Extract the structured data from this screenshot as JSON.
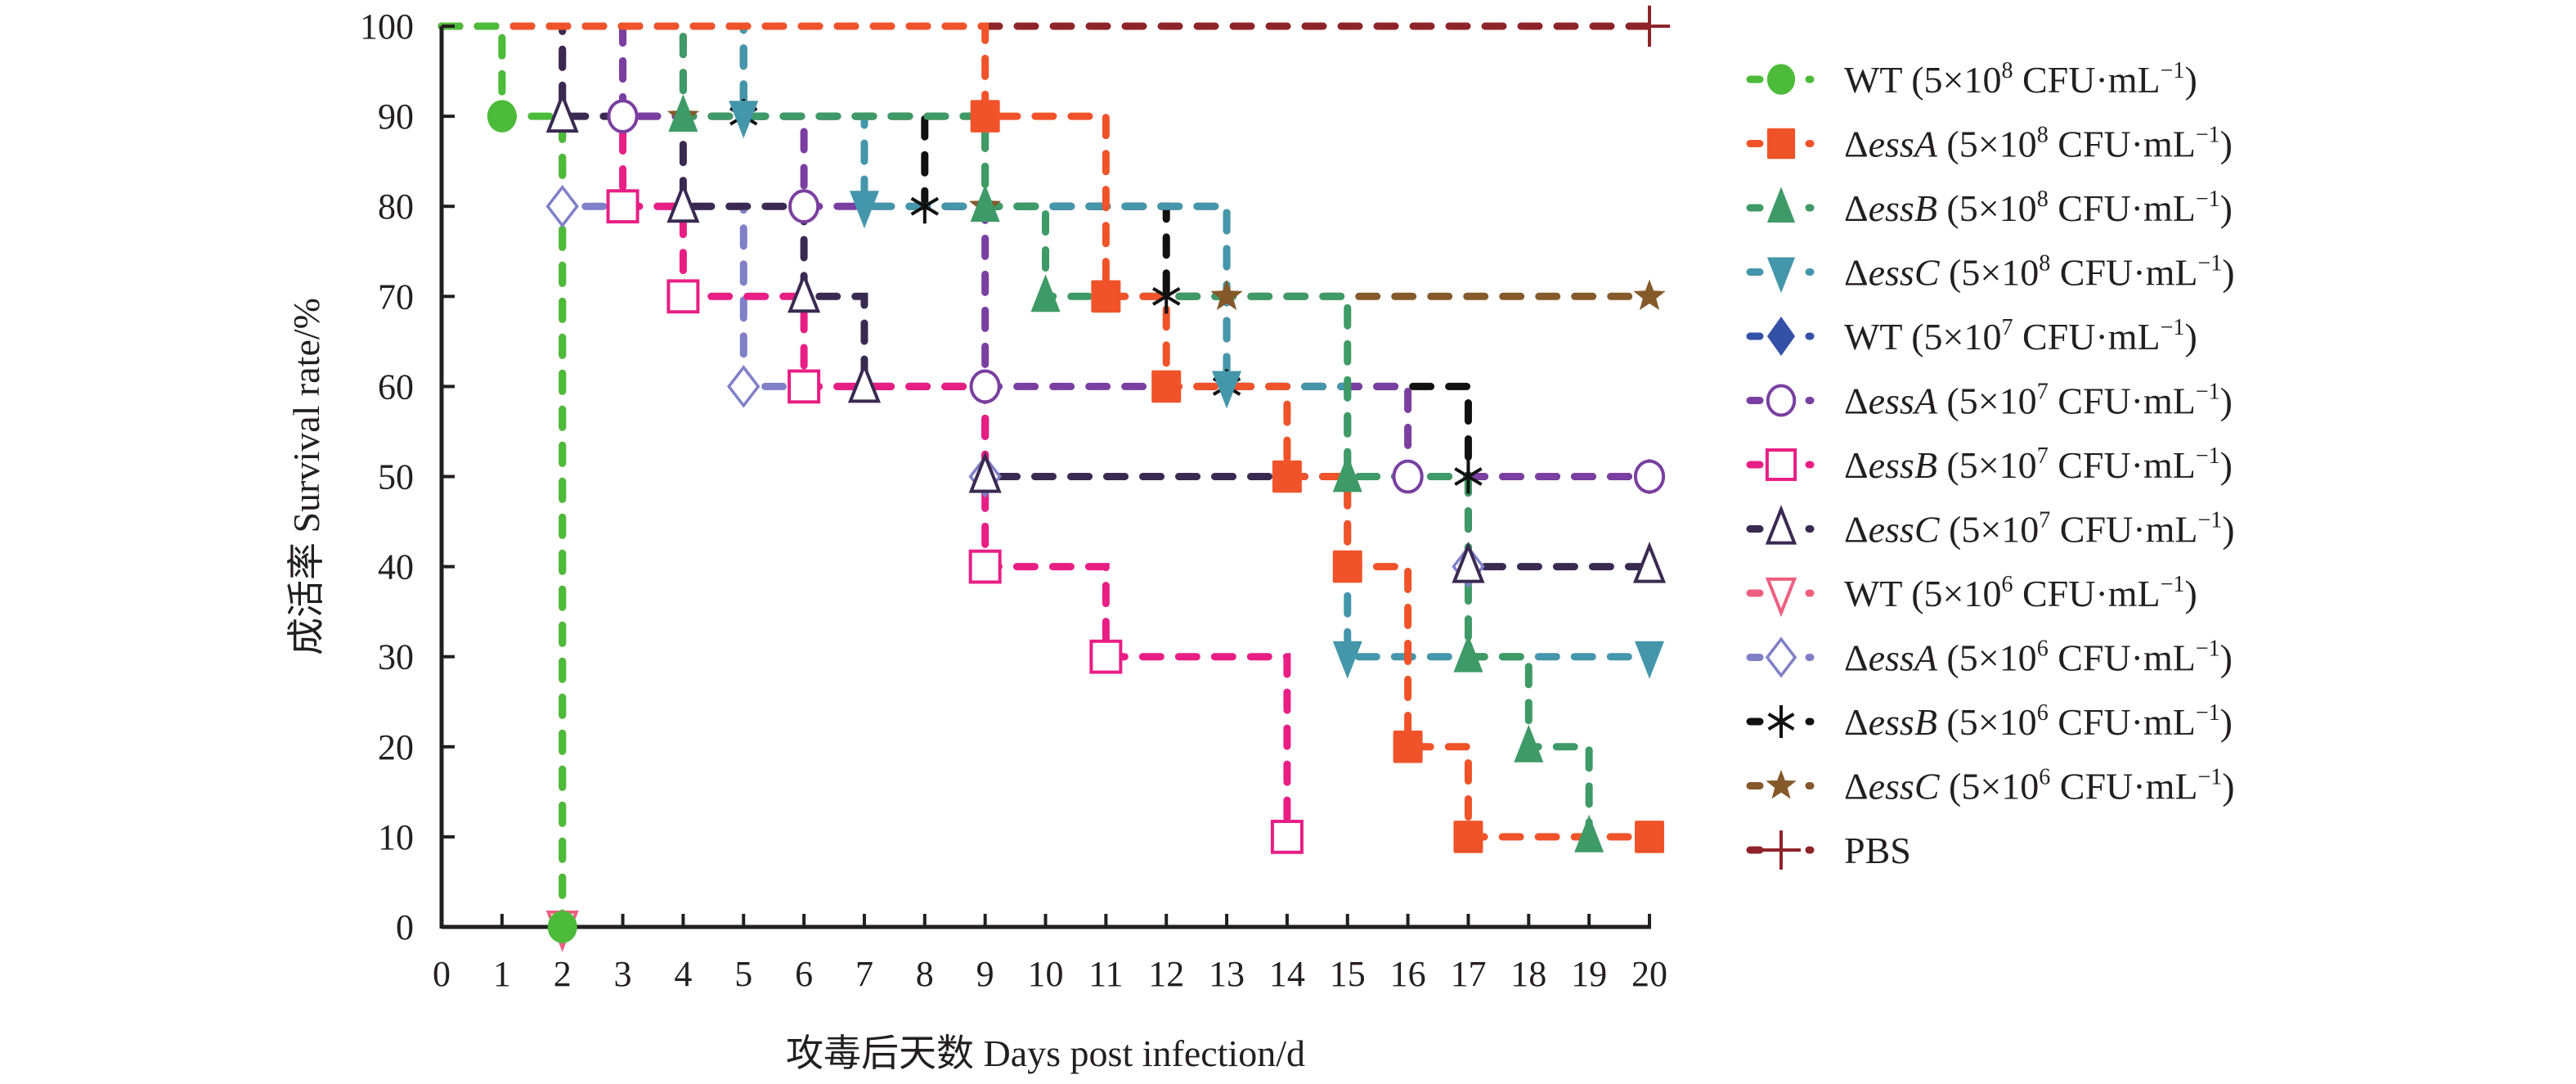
{
  "chart_data": {
    "type": "line",
    "subtype": "step (Kaplan-Meier survival)",
    "title": "",
    "xlabel": "攻毒后天数 Days post infection/d",
    "ylabel": "成活率 Survival rate/%",
    "xlim": [
      0,
      20
    ],
    "ylim": [
      0,
      100
    ],
    "xticks": [
      0,
      1,
      2,
      3,
      4,
      5,
      6,
      7,
      8,
      9,
      10,
      11,
      12,
      13,
      14,
      15,
      16,
      17,
      18,
      19,
      20
    ],
    "yticks": [
      0,
      10,
      20,
      30,
      40,
      50,
      60,
      70,
      80,
      90,
      100
    ],
    "grid": false,
    "legend_position": "right",
    "series": [
      {
        "name": "WT (5×10⁸ CFU·mL⁻¹)",
        "prefix": "",
        "strain": "WT",
        "dose": "5×10",
        "exp": "8",
        "color": "#4cbb3a",
        "marker": "circle-filled",
        "points": [
          [
            0,
            100
          ],
          [
            1,
            90
          ],
          [
            2,
            0
          ]
        ]
      },
      {
        "name": "ΔessA (5×10⁸ CFU·mL⁻¹)",
        "prefix": "Δ",
        "strain": "essA",
        "dose": "5×10",
        "exp": "8",
        "color": "#f0532a",
        "marker": "square-filled",
        "points": [
          [
            0,
            100
          ],
          [
            9,
            90
          ],
          [
            11,
            70
          ],
          [
            12,
            60
          ],
          [
            14,
            50
          ],
          [
            15,
            40
          ],
          [
            16,
            20
          ],
          [
            17,
            10
          ],
          [
            20,
            10
          ]
        ]
      },
      {
        "name": "ΔessB (5×10⁸ CFU·mL⁻¹)",
        "prefix": "Δ",
        "strain": "essB",
        "dose": "5×10",
        "exp": "8",
        "color": "#3e9a66",
        "marker": "triangle-filled",
        "points": [
          [
            0,
            100
          ],
          [
            4,
            90
          ],
          [
            9,
            80
          ],
          [
            10,
            70
          ],
          [
            15,
            50
          ],
          [
            17,
            30
          ],
          [
            18,
            20
          ],
          [
            19,
            10
          ]
        ]
      },
      {
        "name": "ΔessC (5×10⁸ CFU·mL⁻¹)",
        "prefix": "Δ",
        "strain": "essC",
        "dose": "5×10",
        "exp": "8",
        "color": "#4496ab",
        "marker": "triangle-down-filled",
        "points": [
          [
            0,
            100
          ],
          [
            5,
            90
          ],
          [
            7,
            80
          ],
          [
            13,
            60
          ],
          [
            15,
            30
          ],
          [
            20,
            30
          ]
        ]
      },
      {
        "name": "WT (5×10⁷ CFU·mL⁻¹)",
        "prefix": "",
        "strain": "WT",
        "dose": "5×10",
        "exp": "7",
        "color": "#3451a8",
        "marker": "diamond-filled",
        "points": []
      },
      {
        "name": "ΔessA (5×10⁷ CFU·mL⁻¹)",
        "prefix": "Δ",
        "strain": "essA",
        "dose": "5×10",
        "exp": "7",
        "color": "#7a3fa0",
        "marker": "circle-open",
        "points": [
          [
            0,
            100
          ],
          [
            3,
            90
          ],
          [
            6,
            80
          ],
          [
            9,
            60
          ],
          [
            16,
            50
          ],
          [
            20,
            50
          ]
        ]
      },
      {
        "name": "ΔessB (5×10⁷ CFU·mL⁻¹)",
        "prefix": "Δ",
        "strain": "essB",
        "dose": "5×10",
        "exp": "7",
        "color": "#e81e85",
        "marker": "square-open",
        "points": [
          [
            0,
            100
          ],
          [
            3,
            80
          ],
          [
            4,
            70
          ],
          [
            6,
            60
          ],
          [
            9,
            40
          ],
          [
            11,
            30
          ],
          [
            14,
            10
          ]
        ]
      },
      {
        "name": "ΔessC (5×10⁷ CFU·mL⁻¹)",
        "prefix": "Δ",
        "strain": "essC",
        "dose": "5×10",
        "exp": "7",
        "color": "#3a2a52",
        "marker": "triangle-open",
        "points": [
          [
            0,
            100
          ],
          [
            2,
            90
          ],
          [
            4,
            80
          ],
          [
            6,
            70
          ],
          [
            7,
            60
          ],
          [
            9,
            50
          ],
          [
            17,
            40
          ],
          [
            20,
            40
          ]
        ]
      },
      {
        "name": "WT (5×10⁶ CFU·mL⁻¹)",
        "prefix": "",
        "strain": "WT",
        "dose": "5×10",
        "exp": "6",
        "color": "#ee5f7f",
        "marker": "triangle-down-open",
        "points": [
          [
            0,
            100
          ],
          [
            2,
            0
          ]
        ]
      },
      {
        "name": "ΔessA (5×10⁶ CFU·mL⁻¹)",
        "prefix": "Δ",
        "strain": "essA",
        "dose": "5×10",
        "exp": "6",
        "color": "#7f80c8",
        "marker": "diamond-open",
        "points": [
          [
            0,
            100
          ],
          [
            2,
            80
          ],
          [
            5,
            60
          ],
          [
            9,
            50
          ],
          [
            17,
            40
          ]
        ]
      },
      {
        "name": "ΔessB (5×10⁶ CFU·mL⁻¹)",
        "prefix": "Δ",
        "strain": "essB",
        "dose": "5×10",
        "exp": "6",
        "color": "#111111",
        "marker": "asterisk",
        "points": [
          [
            0,
            100
          ],
          [
            5,
            90
          ],
          [
            8,
            80
          ],
          [
            12,
            70
          ],
          [
            13,
            60
          ],
          [
            17,
            50
          ],
          [
            20,
            50
          ]
        ]
      },
      {
        "name": "ΔessC (5×10⁶ CFU·mL⁻¹)",
        "prefix": "Δ",
        "strain": "essC",
        "dose": "5×10",
        "exp": "6",
        "color": "#85592a",
        "marker": "star",
        "points": [
          [
            0,
            100
          ],
          [
            4,
            90
          ],
          [
            9,
            80
          ],
          [
            13,
            70
          ],
          [
            20,
            70
          ]
        ]
      },
      {
        "name": "PBS",
        "prefix": "",
        "strain": "PBS",
        "dose": "",
        "exp": "",
        "color": "#8e2429",
        "marker": "plus",
        "points": [
          [
            0,
            100
          ],
          [
            20,
            100
          ]
        ]
      }
    ],
    "unit_suffix": " CFU·mL",
    "unit_exp": "−1"
  }
}
